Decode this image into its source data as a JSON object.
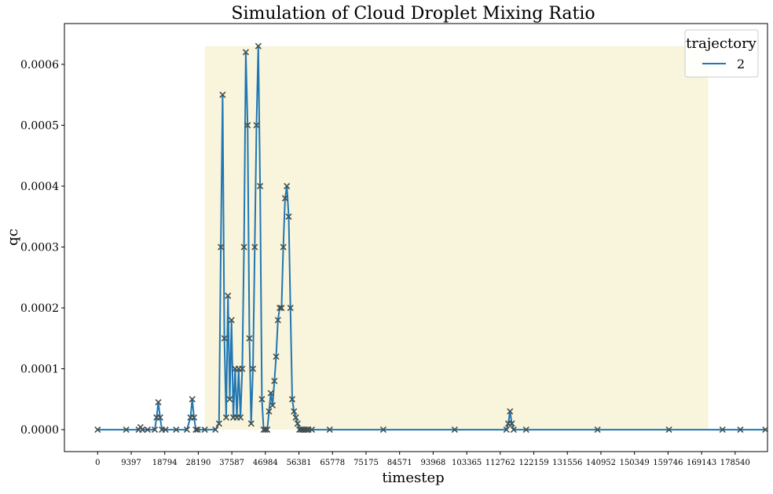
{
  "chart_data": {
    "type": "line",
    "title": "Simulation of Cloud Droplet Mixing Ratio",
    "xlabel": "timestep",
    "ylabel": "qc",
    "x_ticks": [
      "0",
      "9397",
      "18794",
      "28190",
      "37587",
      "46984",
      "56381",
      "65778",
      "75175",
      "84571",
      "93968",
      "103365",
      "112762",
      "122159",
      "131556",
      "140952",
      "150349",
      "159746",
      "169143",
      "178540"
    ],
    "y_ticks": [
      "0.0000",
      "0.0001",
      "0.0002",
      "0.0003",
      "0.0004",
      "0.0005",
      "0.0006"
    ],
    "xlim": [
      -9300,
      187600
    ],
    "ylim": [
      -3.6e-05,
      0.000667
    ],
    "grid": false,
    "legend": {
      "title": "trajectory",
      "position": "top-right",
      "entries": [
        "2"
      ]
    },
    "highlight_region": {
      "x": [
        30000,
        171000
      ],
      "y": [
        0,
        0.00063
      ],
      "color": "#f9f4dc"
    },
    "series": [
      {
        "name": "2",
        "color": "#1f77b4",
        "marker": "x",
        "marker_color": "#404f4f",
        "x": [
          0,
          8000,
          11500,
          12000,
          12500,
          14000,
          16000,
          16500,
          17000,
          17500,
          18000,
          19000,
          22000,
          25000,
          26000,
          26500,
          27000,
          27500,
          28000,
          30000,
          33000,
          34000,
          34500,
          35000,
          35500,
          36000,
          36500,
          37000,
          37500,
          38000,
          38500,
          39000,
          39500,
          40000,
          40500,
          41000,
          41500,
          42000,
          42500,
          43000,
          43500,
          44000,
          44500,
          45000,
          45500,
          46000,
          46500,
          47000,
          47500,
          48000,
          48500,
          49000,
          49500,
          50000,
          50500,
          51000,
          51500,
          52000,
          52500,
          53000,
          53500,
          54000,
          54500,
          55000,
          55500,
          56000,
          56500,
          57000,
          57500,
          58000,
          58500,
          59000,
          60000,
          65000,
          80000,
          100000,
          114500,
          115000,
          115500,
          116000,
          116500,
          120000,
          140000,
          160000,
          175000,
          180000,
          187000
        ],
        "y": [
          0,
          0,
          0,
          4e-06,
          0,
          0,
          0,
          2e-05,
          4.5e-05,
          2e-05,
          0,
          0,
          0,
          0,
          2e-05,
          5e-05,
          2e-05,
          0,
          0,
          0,
          0,
          1e-05,
          0.0003,
          0.00055,
          0.00015,
          2e-05,
          0.00022,
          5e-05,
          0.00018,
          2e-05,
          0.0001,
          2e-05,
          0.0001,
          2e-05,
          0.0001,
          0.0003,
          0.00062,
          0.0005,
          0.00015,
          1e-05,
          0.0001,
          0.0003,
          0.0005,
          0.00063,
          0.0004,
          5e-05,
          0,
          0,
          0,
          3e-05,
          6e-05,
          4e-05,
          8e-05,
          0.00012,
          0.00018,
          0.0002,
          0.0002,
          0.0003,
          0.00038,
          0.0004,
          0.00035,
          0.0002,
          5e-05,
          3e-05,
          2e-05,
          1e-05,
          0,
          0,
          0,
          0,
          0,
          0,
          0,
          0,
          0,
          0,
          0,
          1e-05,
          3e-05,
          1e-05,
          0,
          0,
          0,
          0,
          0,
          0,
          0
        ]
      }
    ]
  }
}
